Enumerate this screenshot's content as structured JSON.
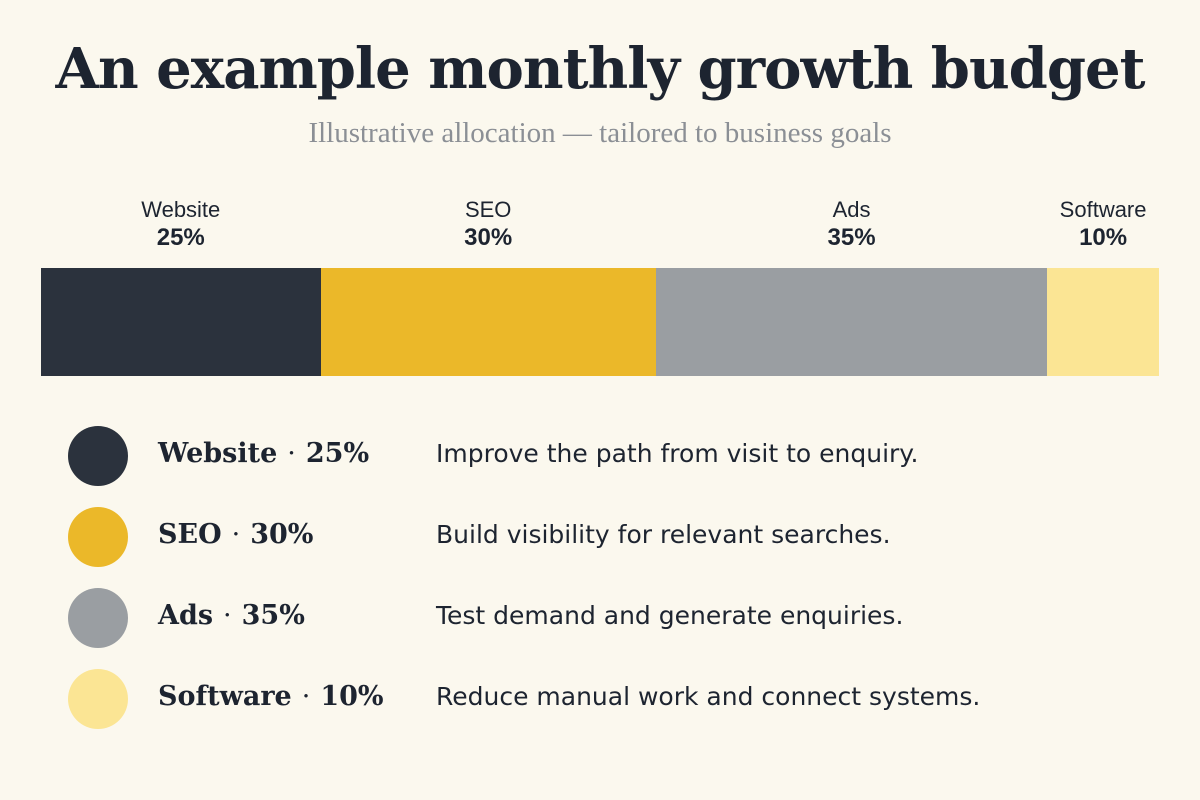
{
  "chart_data": {
    "type": "bar",
    "orientation": "horizontal-stacked",
    "title": "An example monthly growth budget",
    "subtitle": "Illustrative allocation — tailored to business goals",
    "categories": [
      "Website",
      "SEO",
      "Ads",
      "Software"
    ],
    "values": [
      25,
      30,
      35,
      10
    ],
    "value_labels": [
      "25%",
      "30%",
      "35%",
      "10%"
    ],
    "unit": "%",
    "colors": [
      "#2b323d",
      "#ebb829",
      "#9a9ea2",
      "#fbe594"
    ],
    "legend": [
      {
        "name": "Website",
        "value": "25%",
        "description": "Improve the path from visit to enquiry."
      },
      {
        "name": "SEO",
        "value": "30%",
        "description": "Build visibility for relevant searches."
      },
      {
        "name": "Ads",
        "value": "35%",
        "description": "Test demand and generate enquiries."
      },
      {
        "name": "Software",
        "value": "10%",
        "description": "Reduce manual work and connect systems."
      }
    ],
    "legend_placement": "bottom",
    "grid": false
  },
  "legend_separator": "·"
}
